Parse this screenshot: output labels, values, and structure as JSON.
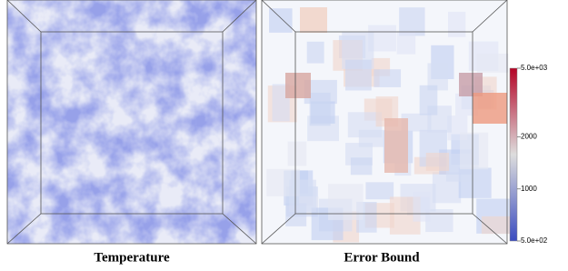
{
  "panels": [
    {
      "caption": "Temperature"
    },
    {
      "caption": "Error Bound"
    }
  ],
  "colorbar": {
    "scale": "log",
    "range": [
      500,
      5000
    ],
    "ticks": [
      {
        "value": 5000,
        "label": "5.0e+03"
      },
      2000,
      1000,
      {
        "value": 500,
        "label": "5.0e+02"
      }
    ],
    "colors": [
      "#3b4cc0",
      "#dddddd",
      "#b40426"
    ]
  }
}
